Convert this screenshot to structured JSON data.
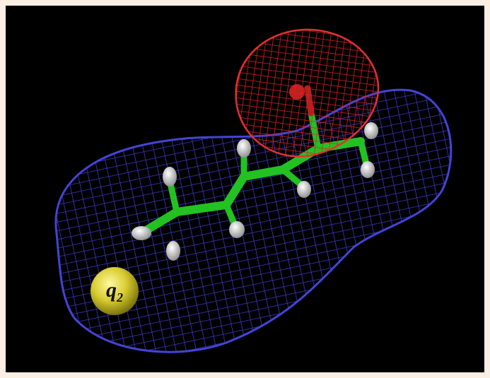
{
  "label": {
    "symbol": "q",
    "subscript": "2"
  }
}
